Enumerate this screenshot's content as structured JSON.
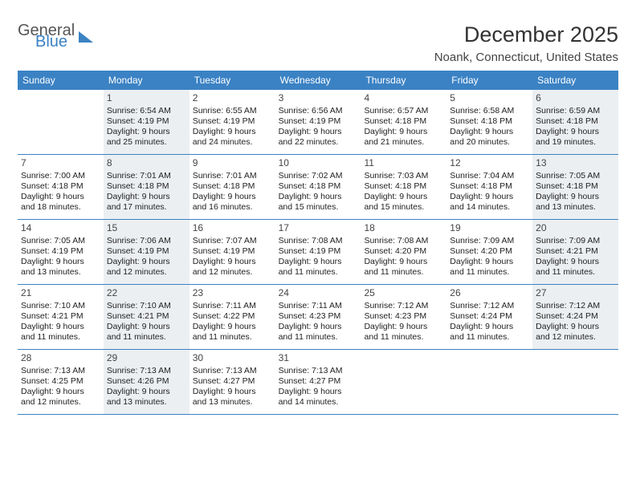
{
  "logo": {
    "text1": "General",
    "text2": "Blue"
  },
  "title": "December 2025",
  "location": "Noank, Connecticut, United States",
  "colors": {
    "header_bg": "#3b82c4",
    "header_text": "#ffffff",
    "divider": "#3b82c4",
    "shade_bg": "#eceff2",
    "body_text": "#222222",
    "title_text": "#333333"
  },
  "day_headers": [
    "Sunday",
    "Monday",
    "Tuesday",
    "Wednesday",
    "Thursday",
    "Friday",
    "Saturday"
  ],
  "weeks": [
    [
      {
        "n": "",
        "sunrise": "",
        "sunset": "",
        "dl1": "",
        "dl2": "",
        "shade": false,
        "empty": true
      },
      {
        "n": "1",
        "sunrise": "Sunrise: 6:54 AM",
        "sunset": "Sunset: 4:19 PM",
        "dl1": "Daylight: 9 hours",
        "dl2": "and 25 minutes.",
        "shade": true
      },
      {
        "n": "2",
        "sunrise": "Sunrise: 6:55 AM",
        "sunset": "Sunset: 4:19 PM",
        "dl1": "Daylight: 9 hours",
        "dl2": "and 24 minutes.",
        "shade": false
      },
      {
        "n": "3",
        "sunrise": "Sunrise: 6:56 AM",
        "sunset": "Sunset: 4:19 PM",
        "dl1": "Daylight: 9 hours",
        "dl2": "and 22 minutes.",
        "shade": false
      },
      {
        "n": "4",
        "sunrise": "Sunrise: 6:57 AM",
        "sunset": "Sunset: 4:18 PM",
        "dl1": "Daylight: 9 hours",
        "dl2": "and 21 minutes.",
        "shade": false
      },
      {
        "n": "5",
        "sunrise": "Sunrise: 6:58 AM",
        "sunset": "Sunset: 4:18 PM",
        "dl1": "Daylight: 9 hours",
        "dl2": "and 20 minutes.",
        "shade": false
      },
      {
        "n": "6",
        "sunrise": "Sunrise: 6:59 AM",
        "sunset": "Sunset: 4:18 PM",
        "dl1": "Daylight: 9 hours",
        "dl2": "and 19 minutes.",
        "shade": true
      }
    ],
    [
      {
        "n": "7",
        "sunrise": "Sunrise: 7:00 AM",
        "sunset": "Sunset: 4:18 PM",
        "dl1": "Daylight: 9 hours",
        "dl2": "and 18 minutes.",
        "shade": false
      },
      {
        "n": "8",
        "sunrise": "Sunrise: 7:01 AM",
        "sunset": "Sunset: 4:18 PM",
        "dl1": "Daylight: 9 hours",
        "dl2": "and 17 minutes.",
        "shade": true
      },
      {
        "n": "9",
        "sunrise": "Sunrise: 7:01 AM",
        "sunset": "Sunset: 4:18 PM",
        "dl1": "Daylight: 9 hours",
        "dl2": "and 16 minutes.",
        "shade": false
      },
      {
        "n": "10",
        "sunrise": "Sunrise: 7:02 AM",
        "sunset": "Sunset: 4:18 PM",
        "dl1": "Daylight: 9 hours",
        "dl2": "and 15 minutes.",
        "shade": false
      },
      {
        "n": "11",
        "sunrise": "Sunrise: 7:03 AM",
        "sunset": "Sunset: 4:18 PM",
        "dl1": "Daylight: 9 hours",
        "dl2": "and 15 minutes.",
        "shade": false
      },
      {
        "n": "12",
        "sunrise": "Sunrise: 7:04 AM",
        "sunset": "Sunset: 4:18 PM",
        "dl1": "Daylight: 9 hours",
        "dl2": "and 14 minutes.",
        "shade": false
      },
      {
        "n": "13",
        "sunrise": "Sunrise: 7:05 AM",
        "sunset": "Sunset: 4:18 PM",
        "dl1": "Daylight: 9 hours",
        "dl2": "and 13 minutes.",
        "shade": true
      }
    ],
    [
      {
        "n": "14",
        "sunrise": "Sunrise: 7:05 AM",
        "sunset": "Sunset: 4:19 PM",
        "dl1": "Daylight: 9 hours",
        "dl2": "and 13 minutes.",
        "shade": false
      },
      {
        "n": "15",
        "sunrise": "Sunrise: 7:06 AM",
        "sunset": "Sunset: 4:19 PM",
        "dl1": "Daylight: 9 hours",
        "dl2": "and 12 minutes.",
        "shade": true
      },
      {
        "n": "16",
        "sunrise": "Sunrise: 7:07 AM",
        "sunset": "Sunset: 4:19 PM",
        "dl1": "Daylight: 9 hours",
        "dl2": "and 12 minutes.",
        "shade": false
      },
      {
        "n": "17",
        "sunrise": "Sunrise: 7:08 AM",
        "sunset": "Sunset: 4:19 PM",
        "dl1": "Daylight: 9 hours",
        "dl2": "and 11 minutes.",
        "shade": false
      },
      {
        "n": "18",
        "sunrise": "Sunrise: 7:08 AM",
        "sunset": "Sunset: 4:20 PM",
        "dl1": "Daylight: 9 hours",
        "dl2": "and 11 minutes.",
        "shade": false
      },
      {
        "n": "19",
        "sunrise": "Sunrise: 7:09 AM",
        "sunset": "Sunset: 4:20 PM",
        "dl1": "Daylight: 9 hours",
        "dl2": "and 11 minutes.",
        "shade": false
      },
      {
        "n": "20",
        "sunrise": "Sunrise: 7:09 AM",
        "sunset": "Sunset: 4:21 PM",
        "dl1": "Daylight: 9 hours",
        "dl2": "and 11 minutes.",
        "shade": true
      }
    ],
    [
      {
        "n": "21",
        "sunrise": "Sunrise: 7:10 AM",
        "sunset": "Sunset: 4:21 PM",
        "dl1": "Daylight: 9 hours",
        "dl2": "and 11 minutes.",
        "shade": false
      },
      {
        "n": "22",
        "sunrise": "Sunrise: 7:10 AM",
        "sunset": "Sunset: 4:21 PM",
        "dl1": "Daylight: 9 hours",
        "dl2": "and 11 minutes.",
        "shade": true
      },
      {
        "n": "23",
        "sunrise": "Sunrise: 7:11 AM",
        "sunset": "Sunset: 4:22 PM",
        "dl1": "Daylight: 9 hours",
        "dl2": "and 11 minutes.",
        "shade": false
      },
      {
        "n": "24",
        "sunrise": "Sunrise: 7:11 AM",
        "sunset": "Sunset: 4:23 PM",
        "dl1": "Daylight: 9 hours",
        "dl2": "and 11 minutes.",
        "shade": false
      },
      {
        "n": "25",
        "sunrise": "Sunrise: 7:12 AM",
        "sunset": "Sunset: 4:23 PM",
        "dl1": "Daylight: 9 hours",
        "dl2": "and 11 minutes.",
        "shade": false
      },
      {
        "n": "26",
        "sunrise": "Sunrise: 7:12 AM",
        "sunset": "Sunset: 4:24 PM",
        "dl1": "Daylight: 9 hours",
        "dl2": "and 11 minutes.",
        "shade": false
      },
      {
        "n": "27",
        "sunrise": "Sunrise: 7:12 AM",
        "sunset": "Sunset: 4:24 PM",
        "dl1": "Daylight: 9 hours",
        "dl2": "and 12 minutes.",
        "shade": true
      }
    ],
    [
      {
        "n": "28",
        "sunrise": "Sunrise: 7:13 AM",
        "sunset": "Sunset: 4:25 PM",
        "dl1": "Daylight: 9 hours",
        "dl2": "and 12 minutes.",
        "shade": false
      },
      {
        "n": "29",
        "sunrise": "Sunrise: 7:13 AM",
        "sunset": "Sunset: 4:26 PM",
        "dl1": "Daylight: 9 hours",
        "dl2": "and 13 minutes.",
        "shade": true
      },
      {
        "n": "30",
        "sunrise": "Sunrise: 7:13 AM",
        "sunset": "Sunset: 4:27 PM",
        "dl1": "Daylight: 9 hours",
        "dl2": "and 13 minutes.",
        "shade": false
      },
      {
        "n": "31",
        "sunrise": "Sunrise: 7:13 AM",
        "sunset": "Sunset: 4:27 PM",
        "dl1": "Daylight: 9 hours",
        "dl2": "and 14 minutes.",
        "shade": false
      },
      {
        "n": "",
        "sunrise": "",
        "sunset": "",
        "dl1": "",
        "dl2": "",
        "shade": false,
        "empty": true
      },
      {
        "n": "",
        "sunrise": "",
        "sunset": "",
        "dl1": "",
        "dl2": "",
        "shade": false,
        "empty": true
      },
      {
        "n": "",
        "sunrise": "",
        "sunset": "",
        "dl1": "",
        "dl2": "",
        "shade": false,
        "empty": true
      }
    ]
  ]
}
